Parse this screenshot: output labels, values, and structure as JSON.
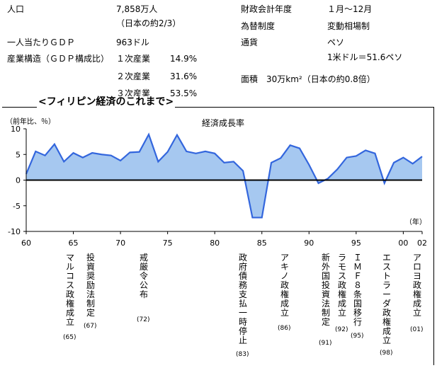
{
  "info": {
    "population_label": "人口",
    "population_value": "7,858万人",
    "population_note": "（日本の約2/3）",
    "gdp_label": "一人当たりＧＤＰ",
    "gdp_value": "963ドル",
    "structure_label": "産業構造（ＧＤＰ構成比）",
    "industries": [
      {
        "name": "１次産業",
        "share": "14.9%"
      },
      {
        "name": "２次産業",
        "share": "31.6%"
      },
      {
        "name": "３次産業",
        "share": "53.5%"
      }
    ],
    "fiscal_label": "財政会計年度",
    "fiscal_value": "１月～12月",
    "fx_label": "為替制度",
    "fx_value": "変動相場制",
    "currency_label": "通貨",
    "currency_value": "ペソ",
    "rate_value": "1米ドル＝51.6ペソ",
    "area_value": "面積　30万km²（日本の約0.8倍）"
  },
  "section_title": "<フィリピン経済のこれまで>",
  "chart_data": {
    "type": "area",
    "title": "経済成長率",
    "ylabel": "（前年比、％）",
    "xlabel": "（年）",
    "xlim": [
      1960,
      2002
    ],
    "ylim": [
      -10,
      10
    ],
    "yticks": [
      10,
      5,
      0,
      -5,
      -10
    ],
    "xticks": [
      1960,
      1965,
      1970,
      1975,
      1980,
      1985,
      1990,
      1995,
      2000,
      2002
    ],
    "xtick_labels": [
      "60",
      "65",
      "70",
      "75",
      "80",
      "85",
      "90",
      "95",
      "00",
      "02"
    ],
    "grid": false,
    "fill_color": "#a6c8f0",
    "line_color": "#3366dd",
    "x": [
      1960,
      1961,
      1962,
      1963,
      1964,
      1965,
      1966,
      1967,
      1968,
      1969,
      1970,
      1971,
      1972,
      1973,
      1974,
      1975,
      1976,
      1977,
      1978,
      1979,
      1980,
      1981,
      1982,
      1983,
      1984,
      1985,
      1986,
      1987,
      1988,
      1989,
      1990,
      1991,
      1992,
      1993,
      1994,
      1995,
      1996,
      1997,
      1998,
      1999,
      2000,
      2001,
      2002
    ],
    "y": [
      1.2,
      5.6,
      4.8,
      7.0,
      3.6,
      5.3,
      4.4,
      5.3,
      5.0,
      4.8,
      3.8,
      5.4,
      5.5,
      8.9,
      3.6,
      5.5,
      8.8,
      5.6,
      5.2,
      5.6,
      5.2,
      3.4,
      3.6,
      1.8,
      -7.3,
      -7.3,
      3.4,
      4.3,
      6.8,
      6.2,
      3.0,
      -0.6,
      0.3,
      2.1,
      4.4,
      4.7,
      5.8,
      5.2,
      -0.6,
      3.4,
      4.4,
      3.2,
      4.6
    ]
  },
  "events": [
    {
      "text": "マルコス政権成立",
      "year": "(65)"
    },
    {
      "text": "投資奨励法制定",
      "year": "(67)"
    },
    {
      "text": "戒厳令公布",
      "year": "(72)"
    },
    {
      "text": "政府債務支払一時停止",
      "year": "(83)"
    },
    {
      "text": "アキノ政権成立",
      "year": "(86)"
    },
    {
      "text": "新外国投資法制定",
      "year": "(91)"
    },
    {
      "text": "ラモス政権成立",
      "year": "(92)"
    },
    {
      "text": "ＩＭＦ８条国移行",
      "year": "(95)"
    },
    {
      "text": "エストラーダ政権成立",
      "year": "(98)"
    },
    {
      "text": "アロヨ政権成立",
      "year": "(01)"
    }
  ]
}
